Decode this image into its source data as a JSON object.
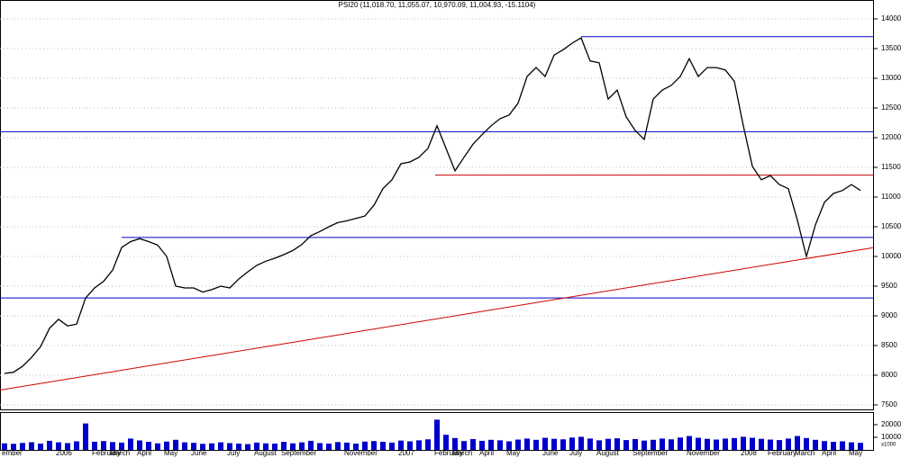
{
  "chart_data": {
    "type": "line",
    "title": "PSI20 (11,018.70, 11,055.07, 10,970.09, 11,004.93, -15.1104)",
    "categories": [
      "ember",
      null,
      null,
      null,
      null,
      null,
      "2006",
      null,
      null,
      null,
      "February",
      null,
      "March",
      null,
      null,
      "April",
      null,
      null,
      "May",
      null,
      null,
      "June",
      null,
      null,
      null,
      "July",
      null,
      null,
      "August",
      null,
      null,
      "September",
      null,
      null,
      null,
      null,
      null,
      null,
      "November",
      null,
      null,
      null,
      null,
      null,
      "2007",
      null,
      null,
      null,
      "February",
      null,
      "March",
      null,
      null,
      "April",
      null,
      null,
      "May",
      null,
      null,
      null,
      "June",
      null,
      null,
      "July",
      null,
      null,
      "August",
      null,
      null,
      null,
      "September",
      null,
      null,
      null,
      null,
      null,
      "November",
      null,
      null,
      null,
      null,
      null,
      "2008",
      null,
      null,
      "February",
      null,
      null,
      "March",
      null,
      null,
      "April",
      null,
      null,
      "May",
      null
    ],
    "series": [
      {
        "name": "PSI20",
        "color": "#000000",
        "values": [
          8030,
          8050,
          8150,
          8300,
          8480,
          8790,
          8940,
          8830,
          8860,
          9300,
          9470,
          9580,
          9770,
          10150,
          10250,
          10300,
          10250,
          10190,
          10000,
          9500,
          9470,
          9470,
          9400,
          9440,
          9500,
          9470,
          9620,
          9740,
          9850,
          9920,
          9970,
          10030,
          10100,
          10200,
          10350,
          10420,
          10500,
          10570,
          10600,
          10640,
          10680,
          10860,
          11140,
          11290,
          11560,
          11590,
          11670,
          11820,
          12200,
          11820,
          11440,
          11670,
          11890,
          12050,
          12200,
          12320,
          12380,
          12580,
          13030,
          13180,
          13030,
          13390,
          13480,
          13590,
          13680,
          13290,
          13260,
          12650,
          12800,
          12350,
          12120,
          11970,
          12650,
          12800,
          12880,
          13030,
          13330,
          13030,
          13180,
          13180,
          13140,
          12950,
          12200,
          11520,
          11290,
          11360,
          11210,
          11140,
          10610,
          10000,
          10530,
          10910,
          11060,
          11110,
          11210,
          11110
        ]
      }
    ],
    "ylim": [
      7424,
      14318
    ],
    "yticks": [
      7500,
      8000,
      8500,
      9000,
      9500,
      10000,
      10500,
      11000,
      11500,
      12000,
      12500,
      13000,
      13500,
      14000
    ],
    "volume": {
      "color": "#0000cc",
      "values": [
        5200,
        4800,
        5500,
        6100,
        5000,
        7200,
        6000,
        5400,
        6800,
        21000,
        6500,
        7000,
        6200,
        5800,
        9000,
        7500,
        6400,
        5200,
        6600,
        8000,
        6000,
        5600,
        4800,
        5200,
        6000,
        5400,
        5000,
        4600,
        5800,
        5200,
        5000,
        6400,
        5200,
        6000,
        7200,
        5400,
        5000,
        6200,
        5800,
        5000,
        6600,
        7000,
        6400,
        5800,
        7400,
        6800,
        7600,
        8400,
        24000,
        12000,
        9400,
        7000,
        8600,
        7200,
        8000,
        7600,
        6800,
        8200,
        9000,
        8000,
        9600,
        8800,
        8400,
        9800,
        10400,
        9000,
        7600,
        8800,
        9200,
        7800,
        8600,
        7400,
        8000,
        9000,
        8400,
        9800,
        11000,
        9600,
        8800,
        8200,
        9000,
        9400,
        10400,
        9600,
        8800,
        8200,
        7800,
        9000,
        11000,
        9400,
        8000,
        7000,
        6400,
        6800,
        6000,
        5600
      ],
      "ylim": [
        0,
        30000
      ],
      "yticks": [
        10000,
        20000
      ],
      "axis_label": "x1000"
    },
    "lines": [
      {
        "color": "#0000cc",
        "x": [
          64,
          96.5
        ],
        "y": [
          13700,
          13700
        ]
      },
      {
        "color": "#0000cc",
        "x": [
          -0.5,
          96.5
        ],
        "y": [
          12100,
          12100
        ]
      },
      {
        "color": "#0000cc",
        "x": [
          13,
          96.5
        ],
        "y": [
          10320,
          10320
        ]
      },
      {
        "color": "#0000cc",
        "x": [
          -0.5,
          96.5
        ],
        "y": [
          9300,
          9300
        ]
      },
      {
        "color": "#cc0000",
        "x": [
          47.8,
          96.5
        ],
        "y": [
          11370,
          11370
        ]
      },
      {
        "color": "#cc0000",
        "x": [
          -0.5,
          96.5
        ],
        "y": [
          7750,
          10150
        ]
      }
    ],
    "grid": true
  }
}
